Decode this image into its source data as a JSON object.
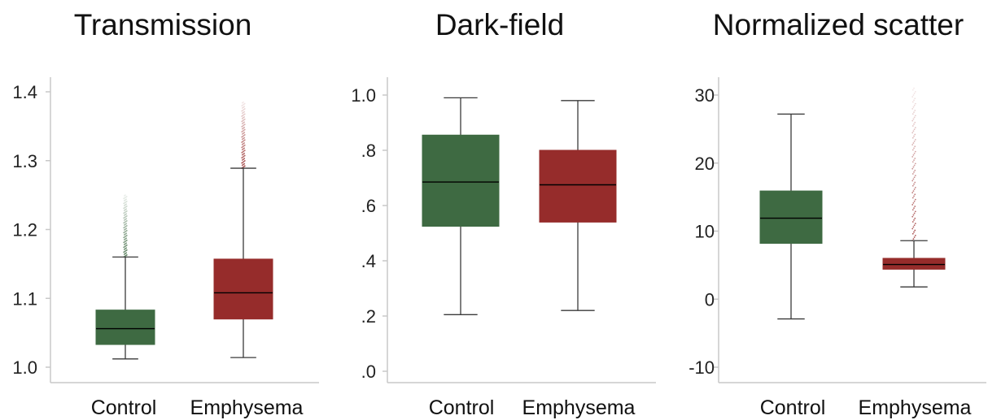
{
  "colors": {
    "control": "#3e6a42",
    "emphysema": "#962c2b",
    "axis": "#c8c8c8",
    "whisker": "#3a3a3a",
    "median": "#000000"
  },
  "chart_data": [
    {
      "type": "box",
      "title": "Transmission",
      "categories": [
        "Control",
        "Emphysema"
      ],
      "ylim": [
        1.0,
        1.4
      ],
      "yticks": [
        1.0,
        1.1,
        1.2,
        1.3,
        1.4
      ],
      "ytick_labels": [
        "1.0",
        "1.1",
        "1.2",
        "1.3",
        "1.4"
      ],
      "boxes": [
        {
          "category": "Control",
          "whisker_low": 1.012,
          "q1": 1.033,
          "median": 1.056,
          "q3": 1.083,
          "whisker_high": 1.16,
          "outlier_max": 1.25
        },
        {
          "category": "Emphysema",
          "whisker_low": 1.014,
          "q1": 1.07,
          "median": 1.108,
          "q3": 1.157,
          "whisker_high": 1.289,
          "outlier_max": 1.385
        }
      ]
    },
    {
      "type": "box",
      "title": "Dark-field",
      "categories": [
        "Control",
        "Emphysema"
      ],
      "ylim": [
        0.0,
        1.0
      ],
      "yticks": [
        0.0,
        0.2,
        0.4,
        0.6,
        0.8,
        1.0
      ],
      "ytick_labels": [
        ".0",
        ".2",
        ".4",
        ".6",
        ".8",
        "1.0"
      ],
      "boxes": [
        {
          "category": "Control",
          "whisker_low": 0.205,
          "q1": 0.525,
          "median": 0.685,
          "q3": 0.855,
          "whisker_high": 0.99
        },
        {
          "category": "Emphysema",
          "whisker_low": 0.22,
          "q1": 0.54,
          "median": 0.675,
          "q3": 0.8,
          "whisker_high": 0.98
        }
      ]
    },
    {
      "type": "box",
      "title": "Normalized scatter",
      "categories": [
        "Control",
        "Emphysema"
      ],
      "ylim": [
        -10,
        30
      ],
      "yticks": [
        -10,
        0,
        10,
        20,
        30
      ],
      "ytick_labels": [
        "-10",
        "0",
        "10",
        "20",
        "30"
      ],
      "boxes": [
        {
          "category": "Control",
          "whisker_low": -2.9,
          "q1": 8.2,
          "median": 11.9,
          "q3": 15.9,
          "whisker_high": 27.2
        },
        {
          "category": "Emphysema",
          "whisker_low": 1.8,
          "q1": 4.4,
          "median": 5.1,
          "q3": 6.0,
          "whisker_high": 8.6,
          "outlier_max": 31
        }
      ]
    }
  ]
}
